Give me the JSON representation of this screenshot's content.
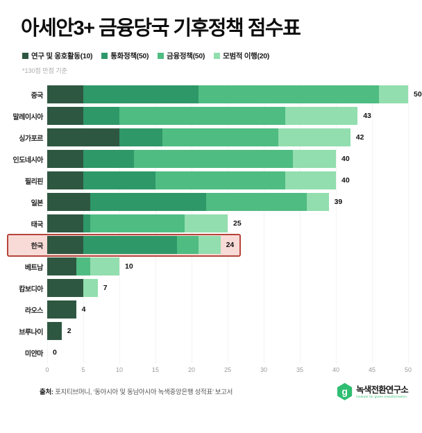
{
  "title": "아세안3+ 금융당국 기후정책 점수표",
  "note": "*130점 만점 기준",
  "legend": [
    {
      "label": "연구 및 옹호활동(10)",
      "color": "#2e5741"
    },
    {
      "label": "통화정책(50)",
      "color": "#2f9868"
    },
    {
      "label": "금융정책(50)",
      "color": "#4fbc82"
    },
    {
      "label": "모범적 이행(20)",
      "color": "#92deae"
    }
  ],
  "chart_data": {
    "type": "bar",
    "orientation": "horizontal",
    "stacked": true,
    "title": "아세안3+ 금융당국 기후정책 점수표",
    "xlabel": "",
    "ylabel": "",
    "xlim": [
      0,
      50
    ],
    "x_ticks": [
      0,
      5,
      10,
      15,
      20,
      25,
      30,
      35,
      40,
      45,
      50
    ],
    "grid": true,
    "legend_position": "top",
    "series_names": [
      "연구 및 옹호활동",
      "통화정책",
      "금융정책",
      "모범적 이행"
    ],
    "categories": [
      "중국",
      "말레이시아",
      "싱가포르",
      "인도네시아",
      "필리핀",
      "일본",
      "태국",
      "한국",
      "베트남",
      "캄보디아",
      "라오스",
      "브루나이",
      "미얀마"
    ],
    "rows": [
      {
        "label": "중국",
        "values": [
          5,
          16,
          25,
          4
        ],
        "total": 50,
        "highlighted": false
      },
      {
        "label": "말레이시아",
        "values": [
          5,
          5,
          23,
          10
        ],
        "total": 43,
        "highlighted": false
      },
      {
        "label": "싱가포르",
        "values": [
          10,
          6,
          16,
          10
        ],
        "total": 42,
        "highlighted": false
      },
      {
        "label": "인도네시아",
        "values": [
          5,
          7,
          22,
          6
        ],
        "total": 40,
        "highlighted": false
      },
      {
        "label": "필리핀",
        "values": [
          5,
          10,
          18,
          7
        ],
        "total": 40,
        "highlighted": false
      },
      {
        "label": "일본",
        "values": [
          6,
          16,
          14,
          3
        ],
        "total": 39,
        "highlighted": false
      },
      {
        "label": "태국",
        "values": [
          5,
          1,
          13,
          6
        ],
        "total": 25,
        "highlighted": false
      },
      {
        "label": "한국",
        "values": [
          5,
          13,
          3,
          3
        ],
        "total": 24,
        "highlighted": true
      },
      {
        "label": "베트남",
        "values": [
          4,
          0,
          2,
          4
        ],
        "total": 10,
        "highlighted": false
      },
      {
        "label": "캄보디아",
        "values": [
          5,
          0,
          0,
          2
        ],
        "total": 7,
        "highlighted": false
      },
      {
        "label": "라오스",
        "values": [
          4,
          0,
          0,
          0
        ],
        "total": 4,
        "highlighted": false
      },
      {
        "label": "브루나이",
        "values": [
          2,
          0,
          0,
          0
        ],
        "total": 2,
        "highlighted": false
      },
      {
        "label": "미얀마",
        "values": [
          0,
          0,
          0,
          0
        ],
        "total": 0,
        "highlighted": false
      }
    ]
  },
  "highlight": {
    "border_color": "#b5443b",
    "fill_color": "#f8dad6"
  },
  "footer": {
    "source_prefix": "출처:",
    "source_text": " 포지티브머니, ‘동아시아 및 동남아시아 녹색중앙은행 성적표’ 보고서",
    "logo_letter": "g",
    "logo_name": "녹색전환연구소",
    "logo_sub": "institute for green transformation",
    "logo_color": "#2fbe71"
  }
}
